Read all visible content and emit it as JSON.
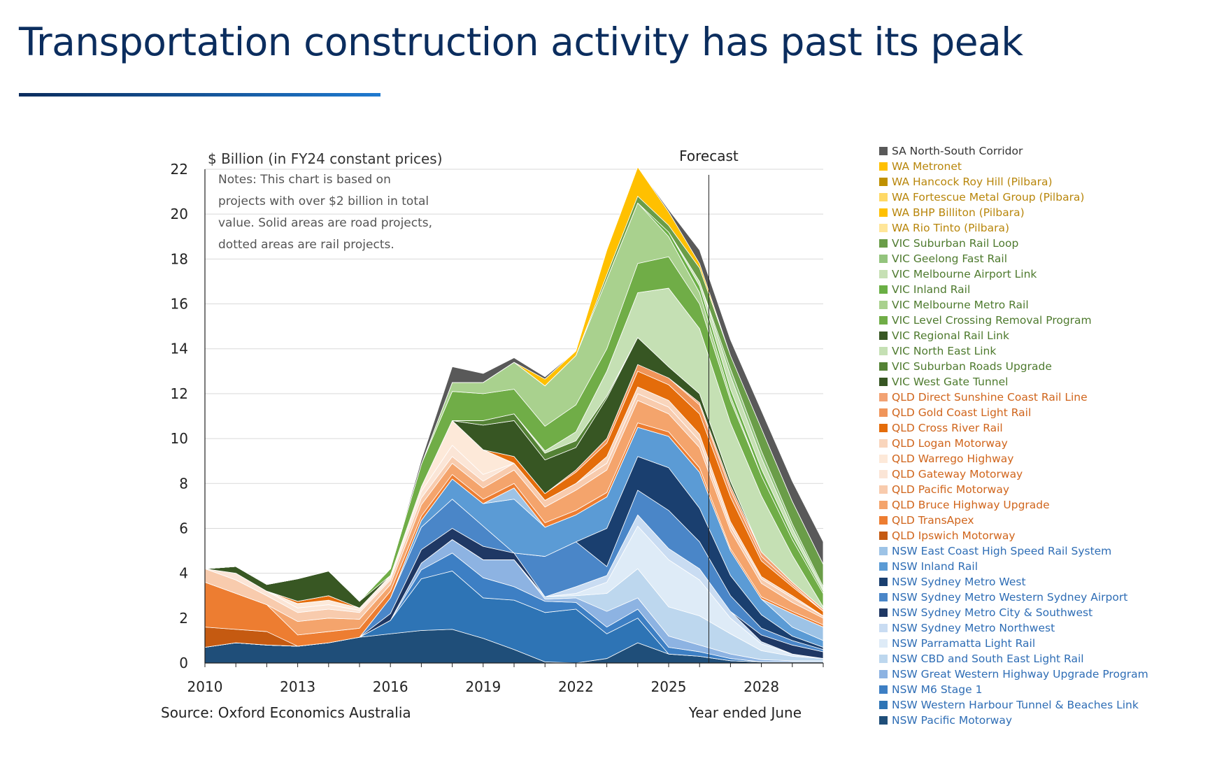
{
  "title": "Transportation construction activity has past its peak",
  "chart_data": {
    "type": "area",
    "stacked": true,
    "ylabel": "$ Billion (in FY24 constant prices)",
    "xlabel": "Year ended June",
    "source": "Source: Oxford Economics Australia",
    "notes": "Notes: This chart is based on projects with over $2 billion in total value. Solid areas are road projects, dotted areas are rail projects.",
    "notes_lines": [
      "Notes: This chart is based on",
      "projects with over $2 billion in total",
      "value. Solid areas are road projects,",
      "dotted areas are rail projects."
    ],
    "forecast_label": "Forecast",
    "forecast_start": 2026.3,
    "ylim": [
      0,
      22
    ],
    "yticks": [
      0,
      2,
      4,
      6,
      8,
      10,
      12,
      14,
      16,
      18,
      20,
      22
    ],
    "xlim": [
      2010,
      2030
    ],
    "xticks": [
      2010,
      2013,
      2016,
      2019,
      2022,
      2025,
      2028
    ],
    "x": [
      2010,
      2011,
      2012,
      2013,
      2014,
      2015,
      2016,
      2017,
      2018,
      2019,
      2020,
      2021,
      2022,
      2023,
      2024,
      2025,
      2026,
      2027,
      2028,
      2029,
      2030
    ],
    "series": [
      {
        "name": "NSW Pacific Motorway",
        "color": "#1f4e79",
        "values": [
          0.7,
          0.9,
          0.8,
          0.75,
          0.9,
          1.15,
          1.3,
          1.45,
          1.5,
          1.1,
          0.6,
          0.05,
          0,
          0.2,
          0.9,
          0.4,
          0.3,
          0.1,
          0.05,
          0.05,
          0.05
        ]
      },
      {
        "name": "NSW Western Harbour Tunnel & Beaches Link",
        "color": "#2e74b5",
        "values": [
          0,
          0,
          0,
          0,
          0,
          0,
          0.6,
          2.3,
          2.6,
          1.8,
          2.2,
          2.2,
          2.4,
          1.1,
          1.1,
          0,
          0,
          0,
          0,
          0,
          0
        ]
      },
      {
        "name": "NSW M6 Stage 1",
        "color": "#3d7fc4",
        "values": [
          0,
          0,
          0,
          0,
          0,
          0,
          0,
          0.4,
          0.8,
          0.9,
          0.6,
          0.5,
          0.3,
          0.3,
          0.4,
          0.3,
          0.2,
          0.1,
          0,
          0,
          0
        ]
      },
      {
        "name": "NSW Great Western Highway Upgrade Program",
        "color": "#8db3e2",
        "values": [
          0,
          0,
          0,
          0,
          0,
          0,
          0,
          0.3,
          0.6,
          0.8,
          1.2,
          0.1,
          0.2,
          0.7,
          0.5,
          0.5,
          0.3,
          0.2,
          0.1,
          0.05,
          0.05
        ]
      },
      {
        "name": "NSW CBD and South East Light Rail",
        "color": "#bdd7ee",
        "values": [
          0,
          0,
          0,
          0,
          0,
          0,
          0,
          0,
          0,
          0,
          0,
          0.1,
          0.1,
          0.8,
          1.3,
          1.3,
          1.3,
          0.9,
          0.4,
          0.2,
          0.1
        ]
      },
      {
        "name": "NSW Parramatta Light Rail",
        "color": "#deebf7",
        "values": [
          0,
          0,
          0,
          0,
          0,
          0,
          0,
          0,
          0,
          0,
          0,
          0,
          0.1,
          0.5,
          1.9,
          2.1,
          1.6,
          0.7,
          0.3,
          0.1,
          0
        ]
      },
      {
        "name": "NSW Sydney Metro Northwest",
        "color": "#c9dcf2",
        "values": [
          0,
          0,
          0,
          0,
          0,
          0,
          0,
          0,
          0,
          0,
          0,
          0,
          0.3,
          0.3,
          0.5,
          0.5,
          0.5,
          0.3,
          0.1,
          0,
          0
        ]
      },
      {
        "name": "NSW Sydney Metro City & Southwest",
        "color": "#1f3864",
        "values": [
          0,
          0,
          0,
          0,
          0,
          0,
          0.3,
          0.6,
          0.5,
          0.6,
          0.3,
          0,
          0,
          0,
          0,
          0,
          0,
          0,
          0.3,
          0.4,
          0.3
        ]
      },
      {
        "name": "NSW Sydney Metro Western Sydney Airport",
        "color": "#4a86c8",
        "values": [
          0,
          0,
          0,
          0,
          0,
          0,
          0.7,
          1.0,
          1.3,
          0.9,
          0,
          1.8,
          2.0,
          0.4,
          1.1,
          1.7,
          1.2,
          0.7,
          0.3,
          0.2,
          0.1
        ]
      },
      {
        "name": "NSW Sydney Metro West",
        "color": "#1a3f6f",
        "values": [
          0,
          0,
          0,
          0,
          0,
          0,
          0,
          0,
          0,
          0,
          0,
          0,
          0,
          1.7,
          1.5,
          1.9,
          1.5,
          0.9,
          0.6,
          0.2,
          0.1
        ]
      },
      {
        "name": "NSW Inland Rail",
        "color": "#5b9bd5",
        "values": [
          0,
          0,
          0,
          0,
          0,
          0,
          0,
          0.3,
          0.9,
          1.0,
          2.4,
          1.3,
          1.2,
          1.4,
          1.3,
          1.4,
          1.6,
          1.1,
          0.7,
          0.4,
          0.3
        ]
      },
      {
        "name": "NSW East Coast High Speed Rail System",
        "color": "#9dc3e6",
        "values": [
          0,
          0,
          0,
          0,
          0,
          0,
          0,
          0,
          0,
          0,
          0.5,
          0,
          0,
          0,
          0,
          0,
          0,
          0,
          0,
          0.6,
          0.6
        ]
      },
      {
        "name": "QLD Ipswich Motorway",
        "color": "#c55a11",
        "values": [
          0.9,
          0.6,
          0.6,
          0,
          0,
          0,
          0,
          0,
          0,
          0,
          0,
          0,
          0,
          0,
          0,
          0,
          0,
          0,
          0,
          0,
          0
        ]
      },
      {
        "name": "QLD TransApex",
        "color": "#ed7d31",
        "values": [
          2.0,
          1.6,
          1.2,
          0.5,
          0.5,
          0.4,
          0.3,
          0.2,
          0.2,
          0.2,
          0.2,
          0.2,
          0.2,
          0.2,
          0.2,
          0.2,
          0.2,
          0.1,
          0.1,
          0.1,
          0.1
        ]
      },
      {
        "name": "QLD Bruce Highway Upgrade",
        "color": "#f4a46c",
        "values": [
          0,
          0,
          0,
          0.6,
          0.6,
          0.4,
          0.3,
          0.5,
          0.5,
          0.5,
          0.6,
          0.7,
          0.9,
          1.0,
          1.0,
          0.8,
          0.9,
          0.8,
          0.6,
          0.4,
          0.3
        ]
      },
      {
        "name": "QLD Pacific Motorway",
        "color": "#f8cbad",
        "values": [
          0.6,
          0.6,
          0.4,
          0.4,
          0.4,
          0.3,
          0.2,
          0.3,
          0.3,
          0.3,
          0.3,
          0.3,
          0.3,
          0.3,
          0.3,
          0.3,
          0.3,
          0.2,
          0.2,
          0.2,
          0.1
        ]
      },
      {
        "name": "QLD Gateway Motorway",
        "color": "#fbe5d6",
        "values": [
          0,
          0.3,
          0.2,
          0.2,
          0.2,
          0.1,
          0.1,
          0.3,
          0.5,
          0.3,
          0,
          0,
          0,
          0,
          0,
          0,
          0,
          0,
          0,
          0,
          0
        ]
      },
      {
        "name": "QLD Warrego Highway",
        "color": "#fde9d9",
        "values": [
          0,
          0,
          0,
          0.2,
          0.2,
          0.1,
          0.1,
          0.2,
          1.1,
          1.1,
          0,
          0,
          0,
          0,
          0,
          0,
          0,
          0,
          0,
          0,
          0
        ]
      },
      {
        "name": "QLD Logan Motorway",
        "color": "#f9d5bc",
        "values": [
          0,
          0,
          0,
          0,
          0,
          0,
          0,
          0,
          0,
          0,
          0,
          0,
          0,
          0.3,
          0.3,
          0.3,
          0.3,
          0.2,
          0.1,
          0.1,
          0
        ]
      },
      {
        "name": "QLD Cross River Rail",
        "color": "#e46c0a",
        "values": [
          0,
          0,
          0,
          0.1,
          0.2,
          0,
          0,
          0,
          0,
          0,
          0.3,
          0.3,
          0.5,
          0.6,
          0.7,
          0.7,
          0.9,
          1.1,
          0.7,
          0.4,
          0.2
        ]
      },
      {
        "name": "QLD Gold Coast Light Rail",
        "color": "#f0955a",
        "values": [
          0,
          0,
          0,
          0,
          0,
          0,
          0,
          0,
          0,
          0,
          0,
          0,
          0.1,
          0.2,
          0.3,
          0.3,
          0.4,
          0.3,
          0.2,
          0.1,
          0
        ]
      },
      {
        "name": "QLD Direct Sunshine Coast Rail Line",
        "color": "#f2a273",
        "values": [
          0,
          0,
          0,
          0,
          0,
          0,
          0,
          0,
          0,
          0,
          0,
          0,
          0,
          0,
          0,
          0,
          0.1,
          0.2,
          0.2,
          0.1,
          0.1
        ]
      },
      {
        "name": "VIC West Gate Tunnel",
        "color": "#375623",
        "values": [
          0,
          0,
          0,
          0,
          0,
          0,
          0,
          0,
          0,
          1.1,
          1.6,
          1.5,
          1.0,
          1.8,
          1.2,
          0.5,
          0.4,
          0.2,
          0,
          0,
          0
        ]
      },
      {
        "name": "VIC Suburban Roads Upgrade",
        "color": "#548235",
        "values": [
          0,
          0,
          0,
          0,
          0,
          0,
          0,
          0,
          0,
          0.2,
          0.3,
          0.3,
          0.3,
          0.1,
          0,
          0,
          0,
          0,
          0,
          0,
          0
        ]
      },
      {
        "name": "VIC North East Link",
        "color": "#c5e0b4",
        "values": [
          0,
          0,
          0,
          0,
          0,
          0,
          0,
          0,
          0,
          0,
          0,
          0.1,
          0.4,
          1.1,
          2.0,
          3.5,
          2.9,
          2.6,
          2.5,
          1.2,
          0.1
        ]
      },
      {
        "name": "VIC Regional Rail Link",
        "color": "#385723",
        "values": [
          0,
          0.3,
          0.3,
          1.0,
          1.1,
          0.3,
          0,
          0,
          0,
          0,
          0,
          0,
          0,
          0,
          0,
          0,
          0,
          0,
          0,
          0,
          0
        ]
      },
      {
        "name": "VIC Level Crossing Removal Program",
        "color": "#70ad47",
        "values": [
          0,
          0,
          0,
          0,
          0,
          0,
          0.3,
          1.0,
          1.3,
          1.2,
          1.1,
          1.1,
          1.2,
          1.0,
          1.3,
          1.4,
          1.1,
          1.0,
          0.9,
          0.7,
          0.6
        ]
      },
      {
        "name": "VIC Melbourne Metro Rail",
        "color": "#a9d18e",
        "values": [
          0,
          0,
          0,
          0,
          0,
          0,
          0,
          0,
          0.4,
          0.5,
          1.2,
          1.8,
          2.2,
          3.1,
          2.7,
          0.9,
          0.5,
          0.2,
          0,
          0,
          0
        ]
      },
      {
        "name": "VIC Inland Rail",
        "color": "#6aaf45",
        "values": [
          0,
          0,
          0,
          0,
          0,
          0,
          0,
          0,
          0,
          0,
          0,
          0,
          0,
          0,
          0,
          0.2,
          0.3,
          0.3,
          0.3,
          0.2,
          0.1
        ]
      },
      {
        "name": "VIC Melbourne Airport Link",
        "color": "#c6e0b4",
        "values": [
          0,
          0,
          0,
          0,
          0,
          0,
          0,
          0,
          0,
          0,
          0,
          0,
          0,
          0,
          0,
          0,
          0.2,
          0.6,
          0.5,
          0.3,
          0.1
        ]
      },
      {
        "name": "VIC Geelong Fast Rail",
        "color": "#93c47d",
        "values": [
          0,
          0,
          0,
          0,
          0,
          0,
          0,
          0,
          0,
          0,
          0,
          0,
          0,
          0,
          0,
          0,
          0,
          0.3,
          0.3,
          0.2,
          0.1
        ]
      },
      {
        "name": "VIC Suburban Rail Loop",
        "color": "#6a9d48",
        "values": [
          0,
          0,
          0,
          0,
          0,
          0,
          0,
          0,
          0,
          0,
          0,
          0,
          0,
          0.2,
          0.3,
          0.3,
          0.6,
          0.6,
          1.0,
          1.0,
          1.0
        ]
      },
      {
        "name": "WA Rio Tinto (Pilbara)",
        "color": "#ffe699",
        "values": [
          0,
          0,
          0,
          0,
          0,
          0,
          0,
          0,
          0,
          0,
          0,
          0,
          0,
          0,
          0,
          0,
          0,
          0,
          0,
          0,
          0
        ]
      },
      {
        "name": "WA BHP Billiton (Pilbara)",
        "color": "#ffc000",
        "values": [
          0,
          0,
          0,
          0,
          0,
          0,
          0,
          0,
          0,
          0,
          0,
          0,
          0,
          0,
          0,
          0,
          0,
          0,
          0,
          0,
          0
        ]
      },
      {
        "name": "WA Fortescue Metal Group (Pilbara)",
        "color": "#ffd966",
        "values": [
          0,
          0,
          0,
          0,
          0,
          0,
          0,
          0,
          0,
          0,
          0,
          0,
          0,
          0,
          0,
          0,
          0,
          0,
          0,
          0,
          0
        ]
      },
      {
        "name": "WA Hancock Roy Hill (Pilbara)",
        "color": "#bf9000",
        "values": [
          0,
          0,
          0,
          0,
          0,
          0,
          0,
          0,
          0,
          0,
          0,
          0,
          0,
          0,
          0,
          0,
          0,
          0,
          0,
          0,
          0
        ]
      },
      {
        "name": "WA Metronet",
        "color": "#ffc000",
        "values": [
          0,
          0,
          0,
          0,
          0,
          0,
          0,
          0,
          0,
          0,
          0,
          0.3,
          0.2,
          1.1,
          1.3,
          0.6,
          0.2,
          0,
          0,
          0,
          0
        ]
      },
      {
        "name": "SA North-South Corridor",
        "color": "#595959",
        "values": [
          0,
          0,
          0,
          0,
          0,
          0,
          0,
          0.2,
          0.7,
          0.4,
          0.2,
          0.1,
          0,
          0,
          0,
          0.1,
          0.6,
          0.7,
          0.8,
          0.9,
          1.0
        ]
      }
    ]
  }
}
